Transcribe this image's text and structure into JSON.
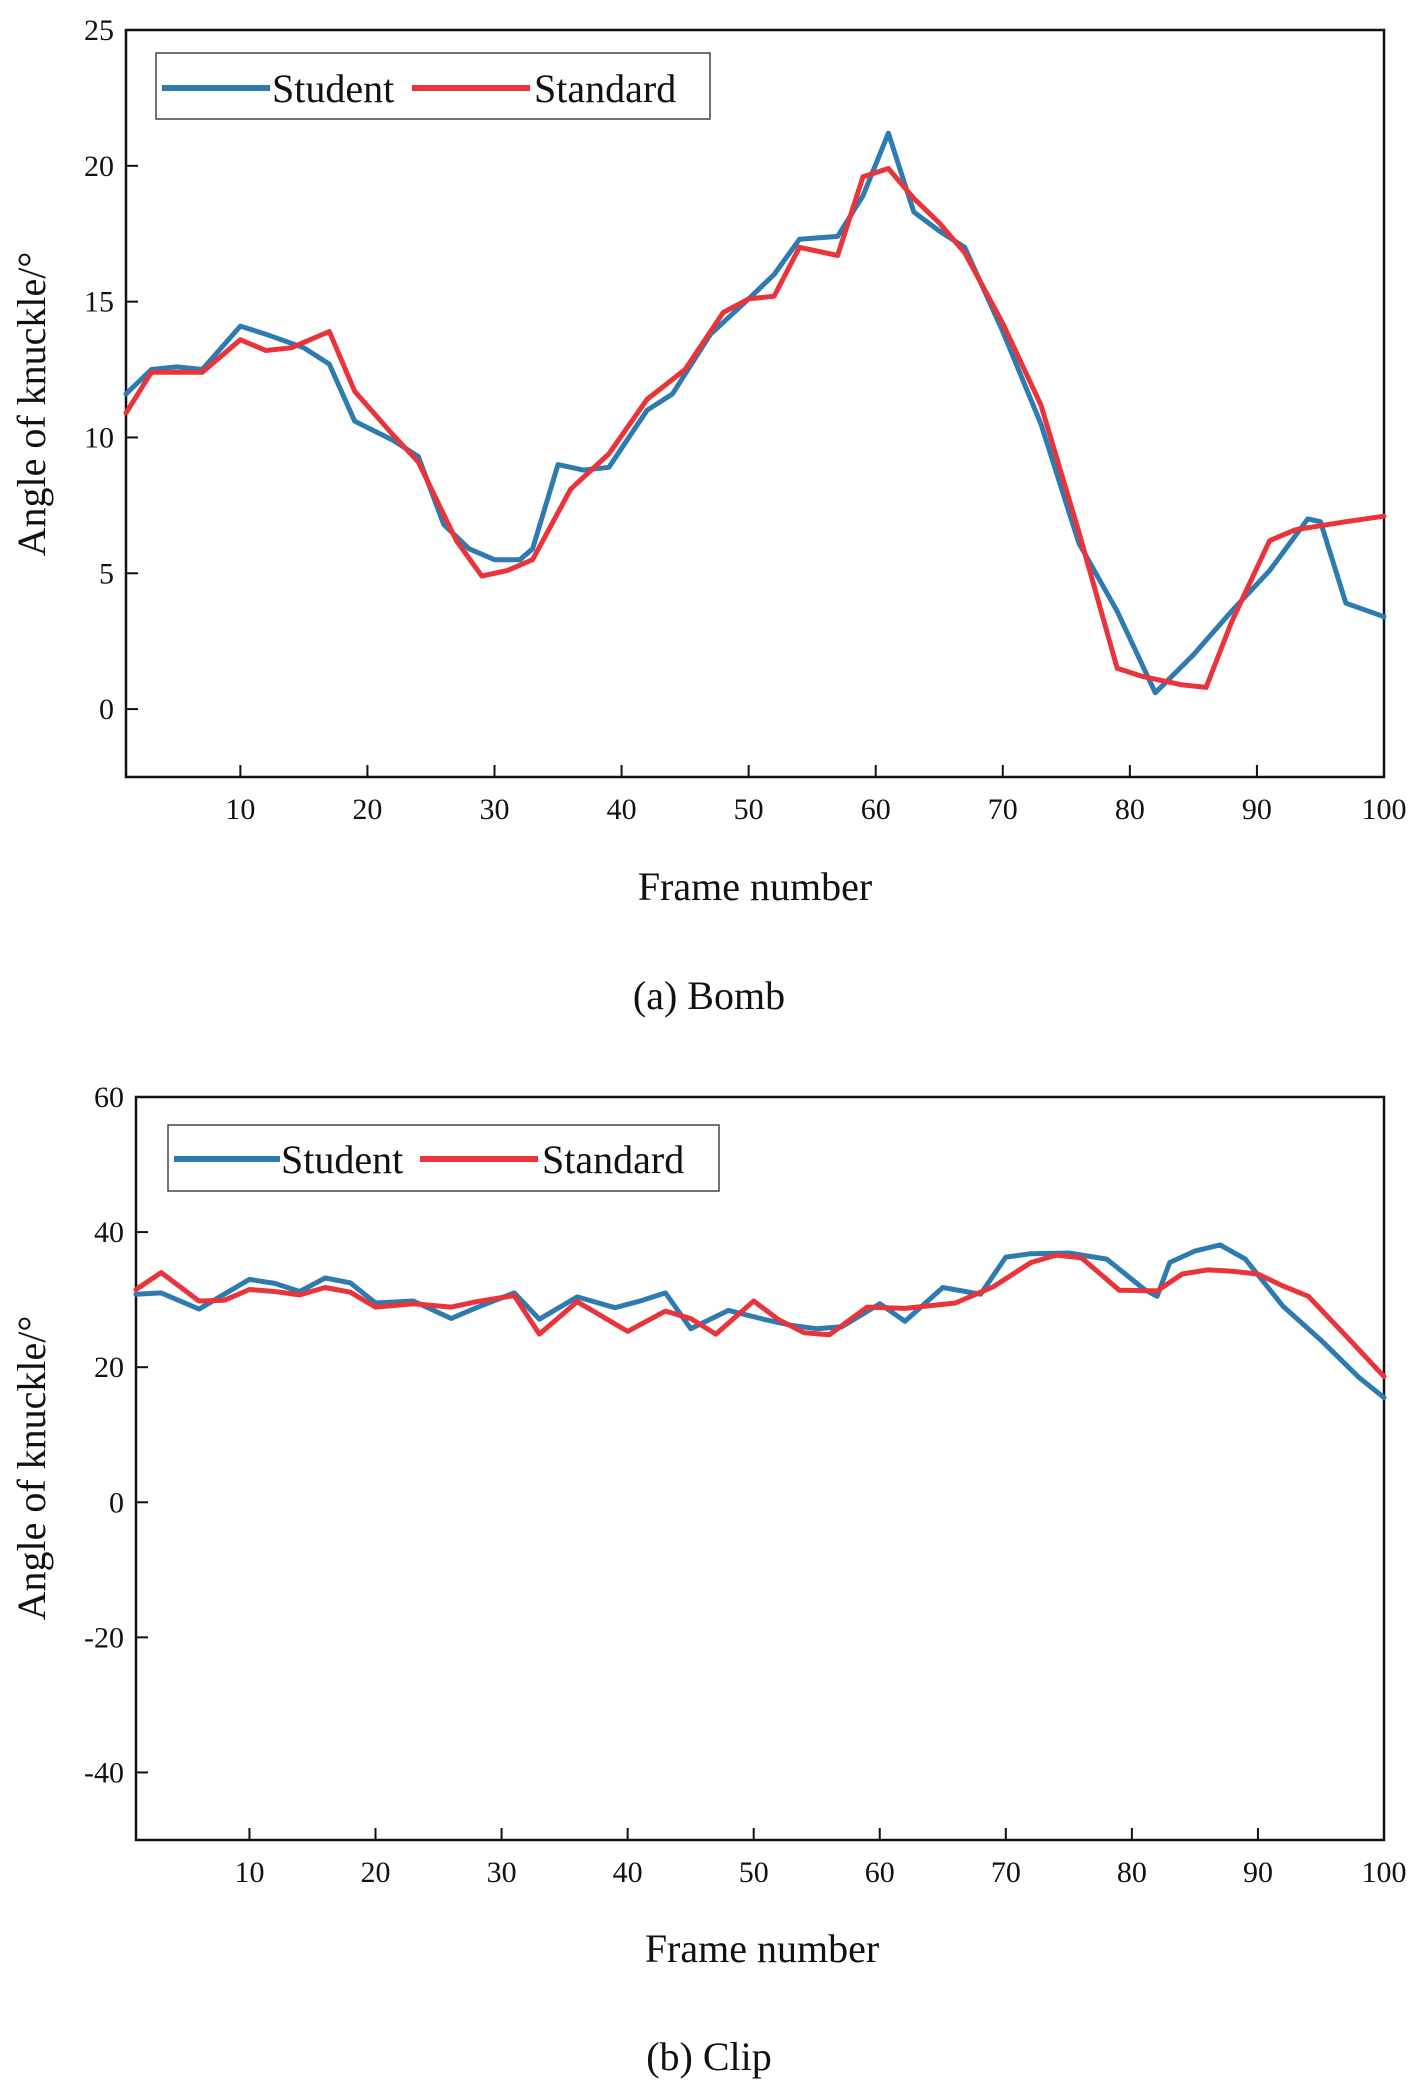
{
  "chart_data": [
    {
      "type": "line",
      "caption": "(a) Bomb",
      "xlabel": "Frame number",
      "ylabel": "Angle of knuckle/°",
      "xlim": [
        1,
        100
      ],
      "ylim": [
        -2.5,
        25
      ],
      "xticks": [
        10,
        20,
        30,
        40,
        50,
        60,
        70,
        80,
        90,
        100
      ],
      "xtick_labels": [
        "10",
        "20",
        "30",
        "40",
        "50",
        "60",
        "70",
        "80",
        "90",
        "100"
      ],
      "yticks": [
        0,
        5,
        10,
        15,
        20,
        25
      ],
      "ytick_labels": [
        "0",
        "5",
        "10",
        "15",
        "20",
        "25"
      ],
      "legend_position": "top-left",
      "series": [
        {
          "name": "Student",
          "color": "#2e7bb0",
          "x": [
            1,
            3,
            5,
            7,
            10,
            12,
            15,
            17,
            19,
            22,
            24,
            26,
            28,
            30,
            32,
            33,
            35,
            37,
            39,
            42,
            44,
            47,
            50,
            52,
            54,
            57,
            59,
            61,
            63,
            65,
            67,
            70,
            73,
            76,
            79,
            82,
            85,
            88,
            91,
            94,
            95,
            97,
            100
          ],
          "y": [
            11.6,
            12.5,
            12.6,
            12.5,
            14.1,
            13.8,
            13.3,
            12.7,
            10.6,
            9.9,
            9.3,
            6.8,
            5.9,
            5.5,
            5.5,
            5.9,
            9.0,
            8.8,
            8.9,
            11.0,
            11.6,
            13.8,
            15.1,
            16.0,
            17.3,
            17.4,
            18.9,
            21.2,
            18.3,
            17.6,
            17.0,
            13.9,
            10.5,
            6.1,
            3.6,
            0.6,
            2.0,
            3.6,
            5.1,
            7.0,
            6.9,
            3.9,
            3.4
          ]
        },
        {
          "name": "Standard",
          "color": "#e8343a",
          "x": [
            1,
            3,
            5,
            7,
            10,
            12,
            14,
            17,
            19,
            22,
            24,
            27,
            29,
            31,
            33,
            36,
            39,
            42,
            45,
            48,
            50,
            52,
            54,
            57,
            59,
            61,
            63,
            65,
            67,
            70,
            73,
            76,
            79,
            81,
            84,
            86,
            88,
            91,
            93,
            97,
            100
          ],
          "y": [
            10.9,
            12.4,
            12.4,
            12.4,
            13.6,
            13.2,
            13.3,
            13.9,
            11.7,
            10.1,
            9.1,
            6.2,
            4.9,
            5.1,
            5.5,
            8.1,
            9.4,
            11.4,
            12.5,
            14.6,
            15.1,
            15.2,
            17.0,
            16.7,
            19.6,
            19.9,
            18.8,
            17.9,
            16.8,
            14.2,
            11.2,
            6.5,
            1.5,
            1.2,
            0.9,
            0.8,
            3.2,
            6.2,
            6.6,
            6.9,
            7.1
          ]
        }
      ]
    },
    {
      "type": "line",
      "caption": "(b) Clip",
      "xlabel": "Frame number",
      "ylabel": "Angle of knuckle/°",
      "xlim": [
        1,
        100
      ],
      "ylim": [
        -50,
        60
      ],
      "xticks": [
        10,
        20,
        30,
        40,
        50,
        60,
        70,
        80,
        90,
        100
      ],
      "xtick_labels": [
        "10",
        "20",
        "30",
        "40",
        "50",
        "60",
        "70",
        "80",
        "90",
        "100"
      ],
      "yticks": [
        -40,
        -20,
        0,
        20,
        40,
        60
      ],
      "ytick_labels": [
        "-40",
        "-20",
        "0",
        "20",
        "40",
        "60"
      ],
      "legend_position": "top-left",
      "series": [
        {
          "name": "Student",
          "color": "#2e7bb0",
          "x": [
            1,
            3,
            6,
            8,
            10,
            12,
            14,
            16,
            18,
            20,
            23,
            26,
            28,
            31,
            33,
            36,
            39,
            41,
            43,
            45,
            48,
            51,
            53,
            55,
            57,
            60,
            62,
            65,
            68,
            70,
            72,
            75,
            78,
            81,
            82,
            83,
            85,
            87,
            89,
            92,
            95,
            98,
            100
          ],
          "y": [
            30.8,
            31.0,
            28.6,
            30.8,
            33.0,
            32.4,
            31.2,
            33.2,
            32.5,
            29.5,
            29.8,
            27.2,
            28.8,
            31.0,
            27.1,
            30.4,
            28.8,
            29.8,
            31.0,
            25.7,
            28.4,
            27.0,
            26.2,
            25.7,
            26.0,
            29.4,
            26.8,
            31.8,
            30.8,
            36.3,
            36.8,
            36.9,
            36.0,
            31.5,
            30.5,
            35.5,
            37.2,
            38.1,
            36.0,
            29.0,
            24.0,
            18.5,
            15.5
          ]
        },
        {
          "name": "Standard",
          "color": "#e8343a",
          "x": [
            1,
            3,
            6,
            8,
            10,
            12,
            14,
            16,
            18,
            20,
            23,
            26,
            28,
            31,
            33,
            36,
            38,
            40,
            43,
            45,
            47,
            50,
            52,
            54,
            56,
            59,
            62,
            66,
            69,
            72,
            74,
            76,
            79,
            82,
            84,
            86,
            88,
            90,
            92,
            94,
            97,
            100
          ],
          "y": [
            31.5,
            34.0,
            29.8,
            29.9,
            31.5,
            31.2,
            30.7,
            31.8,
            31.1,
            28.9,
            29.4,
            28.9,
            29.7,
            30.6,
            24.9,
            29.7,
            27.5,
            25.3,
            28.3,
            27.2,
            24.9,
            29.8,
            27.0,
            25.1,
            24.8,
            28.9,
            28.7,
            29.5,
            31.9,
            35.5,
            36.6,
            36.2,
            31.4,
            31.3,
            33.8,
            34.4,
            34.2,
            33.8,
            32.0,
            30.5,
            24.6,
            18.6
          ]
        }
      ]
    }
  ]
}
